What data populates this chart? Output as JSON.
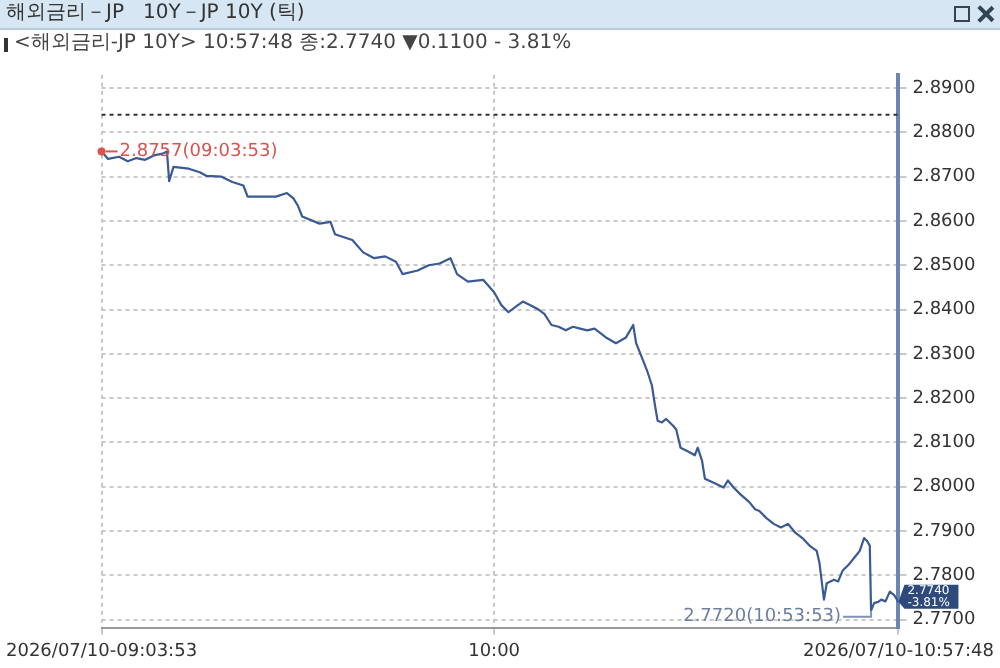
{
  "chart_data": {
    "type": "line",
    "title": "해외금리－JP   10Y－JP 10Y (틱)",
    "subtitle": "<해외금리-JP 10Y> 10:57:48 종:2.7740 ▼0.1100 - 3.81%",
    "x": [
      "2026-07-10T09:03:53",
      "2026-07-10T09:04:49",
      "2026-07-10T09:06:23",
      "2026-07-10T09:07:38",
      "2026-07-10T09:08:52",
      "2026-07-10T09:10:07",
      "2026-07-10T09:11:22",
      "2026-07-10T09:12:37",
      "2026-07-10T09:13:14",
      "2026-07-10T09:13:33",
      "2026-07-10T09:14:10",
      "2026-07-10T09:16:21",
      "2026-07-10T09:17:55",
      "2026-07-10T09:18:51",
      "2026-07-10T09:21:02",
      "2026-07-10T09:22:35",
      "2026-07-10T09:24:09",
      "2026-07-10T09:24:46",
      "2026-07-10T09:28:49",
      "2026-07-10T09:30:23",
      "2026-07-10T09:31:19",
      "2026-07-10T09:31:56",
      "2026-07-10T09:32:34",
      "2026-07-10T09:35:03",
      "2026-07-10T09:36:37",
      "2026-07-10T09:37:15",
      "2026-07-10T09:39:44",
      "2026-07-10T09:41:17",
      "2026-07-10T09:42:51",
      "2026-07-10T09:44:25",
      "2026-07-10T09:45:58",
      "2026-07-10T09:46:55",
      "2026-07-10T09:49:05",
      "2026-07-10T09:50:39",
      "2026-07-10T09:52:12",
      "2026-07-10T09:53:46",
      "2026-07-10T09:54:42",
      "2026-07-10T09:56:15",
      "2026-07-10T09:58:26",
      "2026-07-10T10:00:00",
      "2026-07-10T10:01:02",
      "2026-07-10T10:02:03",
      "2026-07-10T10:03:04",
      "2026-07-10T10:04:06",
      "2026-07-10T10:05:07",
      "2026-07-10T10:06:09",
      "2026-07-10T10:07:11",
      "2026-07-10T10:08:12",
      "2026-07-10T10:09:13",
      "2026-07-10T10:10:15",
      "2026-07-10T10:11:16",
      "2026-07-10T10:12:18",
      "2026-07-10T10:13:19",
      "2026-07-10T10:14:21",
      "2026-07-10T10:15:59",
      "2026-07-10T10:17:25",
      "2026-07-10T10:18:51",
      "2026-07-10T10:19:53",
      "2026-07-10T10:20:18",
      "2026-07-10T10:21:07",
      "2026-07-10T10:21:56",
      "2026-07-10T10:22:33",
      "2026-07-10T10:22:57",
      "2026-07-10T10:23:22",
      "2026-07-10T10:23:59",
      "2026-07-10T10:24:36",
      "2026-07-10T10:25:37",
      "2026-07-10T10:26:02",
      "2026-07-10T10:26:39",
      "2026-07-10T10:27:40",
      "2026-07-10T10:28:42",
      "2026-07-10T10:29:06",
      "2026-07-10T10:29:43",
      "2026-07-10T10:30:08",
      "2026-07-10T10:31:46",
      "2026-07-10T10:32:48",
      "2026-07-10T10:33:25",
      "2026-07-10T10:34:14",
      "2026-07-10T10:35:15",
      "2026-07-10T10:36:29",
      "2026-07-10T10:37:18",
      "2026-07-10T10:37:55",
      "2026-07-10T10:38:56",
      "2026-07-10T10:39:58",
      "2026-07-10T10:40:59",
      "2026-07-10T10:42:01",
      "2026-07-10T10:43:03",
      "2026-07-10T10:44:04",
      "2026-07-10T10:45:05",
      "2026-07-10T10:46:07",
      "2026-07-10T10:46:31",
      "2026-07-10T10:47:09",
      "2026-07-10T10:47:33",
      "2026-07-10T10:48:35",
      "2026-07-10T10:49:11",
      "2026-07-10T10:49:48",
      "2026-07-10T10:50:38",
      "2026-07-10T10:51:39",
      "2026-07-10T10:52:16",
      "2026-07-10T10:52:53",
      "2026-07-10T10:53:17",
      "2026-07-10T10:53:42",
      "2026-07-10T10:53:53",
      "2026-07-10T10:54:19",
      "2026-07-10T10:54:55",
      "2026-07-10T10:55:20",
      "2026-07-10T10:55:57",
      "2026-07-10T10:56:34",
      "2026-07-10T10:57:11",
      "2026-07-10T10:57:48"
    ],
    "series": [
      {
        "color": "#3a5a95",
        "values": [
          2.8757,
          2.874,
          2.8745,
          2.8735,
          2.8742,
          2.8738,
          2.8748,
          2.8752,
          2.8757,
          2.869,
          2.8722,
          2.8718,
          2.871,
          2.8702,
          2.87,
          2.8688,
          2.868,
          2.8655,
          2.8655,
          2.8663,
          2.8651,
          2.8635,
          2.861,
          2.8594,
          2.8598,
          2.857,
          2.8557,
          2.8529,
          2.8516,
          2.852,
          2.8508,
          2.848,
          2.8488,
          2.85,
          2.8504,
          2.8516,
          2.848,
          2.8463,
          2.8467,
          2.8439,
          2.841,
          2.8394,
          2.8406,
          2.8418,
          2.841,
          2.8402,
          2.839,
          2.8365,
          2.8361,
          2.8353,
          2.8361,
          2.8357,
          2.8353,
          2.8357,
          2.8337,
          2.8324,
          2.8337,
          2.8365,
          2.8324,
          2.8292,
          2.8259,
          2.8229,
          2.8188,
          2.8149,
          2.8145,
          2.8153,
          2.8137,
          2.8129,
          2.8088,
          2.808,
          2.8071,
          2.8088,
          2.8059,
          2.8018,
          2.8006,
          2.7998,
          2.8014,
          2.7998,
          2.7982,
          2.7965,
          2.7949,
          2.7945,
          2.7929,
          2.7916,
          2.7908,
          2.7916,
          2.7896,
          2.7884,
          2.7867,
          2.7855,
          2.7827,
          2.7745,
          2.7782,
          2.779,
          2.7786,
          2.781,
          2.7823,
          2.7843,
          2.7855,
          2.7884,
          2.7878,
          2.7867,
          2.772,
          2.7737,
          2.774,
          2.7745,
          2.7741,
          2.7763,
          2.7755,
          2.774
        ]
      }
    ],
    "xlim": [
      "2026-07-10T09:03:53",
      "2026-07-10T10:57:48"
    ],
    "xticks": [
      {
        "value": "2026-07-10T09:03:53",
        "label": "2026/07/10-09:03:53"
      },
      {
        "value": "2026-07-10T10:00",
        "label": "10:00"
      },
      {
        "value": "2026-07-10T10:57:48",
        "label": "2026/07/10-10:57:48"
      }
    ],
    "ylim": [
      2.768,
      2.893
    ],
    "yticks": [
      {
        "value": 2.77,
        "label": "2.7700"
      },
      {
        "value": 2.78,
        "label": "2.7800"
      },
      {
        "value": 2.79,
        "label": "2.7900"
      },
      {
        "value": 2.8,
        "label": "2.8000"
      },
      {
        "value": 2.81,
        "label": "2.8100"
      },
      {
        "value": 2.82,
        "label": "2.8200"
      },
      {
        "value": 2.83,
        "label": "2.8300"
      },
      {
        "value": 2.84,
        "label": "2.8400"
      },
      {
        "value": 2.85,
        "label": "2.8500"
      },
      {
        "value": 2.86,
        "label": "2.8600"
      },
      {
        "value": 2.87,
        "label": "2.8700"
      },
      {
        "value": 2.88,
        "label": "2.8800"
      },
      {
        "value": 2.89,
        "label": "2.8900"
      }
    ],
    "grid": true,
    "marker": "none",
    "line_style": "solid",
    "ref_lines": [
      {
        "axis": "y",
        "value": 2.884,
        "color": "#333333",
        "line_style": "dotted"
      }
    ],
    "annotations": [
      {
        "text": "2.8757(09:03:53)",
        "x": "2026-07-10T09:03:53",
        "y": 2.8757
      },
      {
        "text": "2.7720(10:53:53)",
        "x": "2026-07-10T10:53:53",
        "y": 2.772
      },
      {
        "text": "2.7740 -3.81%",
        "x": "2026-07-10T10:57:48",
        "y": 2.774
      }
    ]
  }
}
